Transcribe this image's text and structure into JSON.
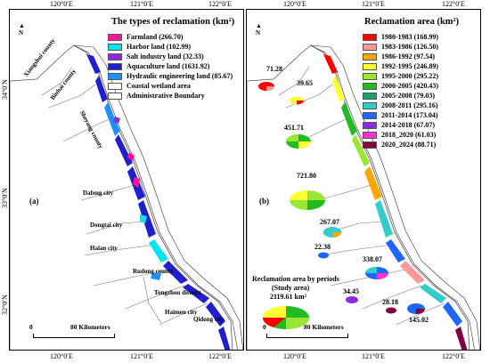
{
  "ticks": {
    "top": [
      "120°0′E",
      "121°0′E",
      "122°0′E"
    ],
    "left": [
      "34°0′N",
      "33°0′N",
      "32°0′N"
    ]
  },
  "panel_a": {
    "letter": "(a)",
    "legend_title": "The types of reclamation (km²)",
    "legend": [
      {
        "label": "Farmland (266.70)",
        "color": "#ff1493"
      },
      {
        "label": "Harbor land (102.99)",
        "color": "#00e5ee"
      },
      {
        "label": "Salt industry land (32.33)",
        "color": "#8a2be2"
      },
      {
        "label": "Aquaculture land (1631.92)",
        "color": "#1f1fcc"
      },
      {
        "label": "Hydraulic engineering land (85.67)",
        "color": "#1e90ff"
      },
      {
        "label": "Coastal wetland area",
        "color": "#ffffff"
      },
      {
        "label": "Administrative Boundary",
        "color": "#ffffff"
      }
    ],
    "regions": [
      "Xiangshui county",
      "Binhai county",
      "Sheyang county",
      "Dafeng city",
      "Dongtai city",
      "Haian city",
      "Rudong county",
      "Tongzhou district",
      "Haimen city",
      "Qidong city"
    ],
    "scale": {
      "zero": "0",
      "label": "80 Kilometers"
    },
    "north": "N"
  },
  "panel_b": {
    "letter": "(b)",
    "legend_title": "Reclamation area (km²)",
    "legend": [
      {
        "label": "1980-1983 (168.99)",
        "color": "#ff0000"
      },
      {
        "label": "1983-1986 (126.50)",
        "color": "#ff9999"
      },
      {
        "label": "1986-1992 (97.54)",
        "color": "#ffa500"
      },
      {
        "label": "1992-1995 (246.89)",
        "color": "#ffff33"
      },
      {
        "label": "1995-2000 (295.22)",
        "color": "#99e633"
      },
      {
        "label": "2000-2005 (420.43)",
        "color": "#22bb22"
      },
      {
        "label": "2005-2008 (79.03)",
        "color": "#1a9e77"
      },
      {
        "label": "2008-2011 (295.16)",
        "color": "#33cccc"
      },
      {
        "label": "2011-2014 (173.04)",
        "color": "#1e66ff"
      },
      {
        "label": "2014-2018 (67.07)",
        "color": "#8a2be2"
      },
      {
        "label": "2018_2020 (61.03)",
        "color": "#ff33cc"
      },
      {
        "label": "2020_2024 (88.71)",
        "color": "#800040"
      }
    ],
    "pie_values": [
      "71.28",
      "39.65",
      "451.71",
      "721.80",
      "267.07",
      "22.38",
      "338.07",
      "34.45",
      "28.18",
      "145.02"
    ],
    "total_caption": [
      "Reclamation area by periods",
      "(Study area)",
      "2119.61 km²"
    ],
    "scale": {
      "zero": "0",
      "label": "80 Kilometers"
    },
    "north": "N"
  }
}
